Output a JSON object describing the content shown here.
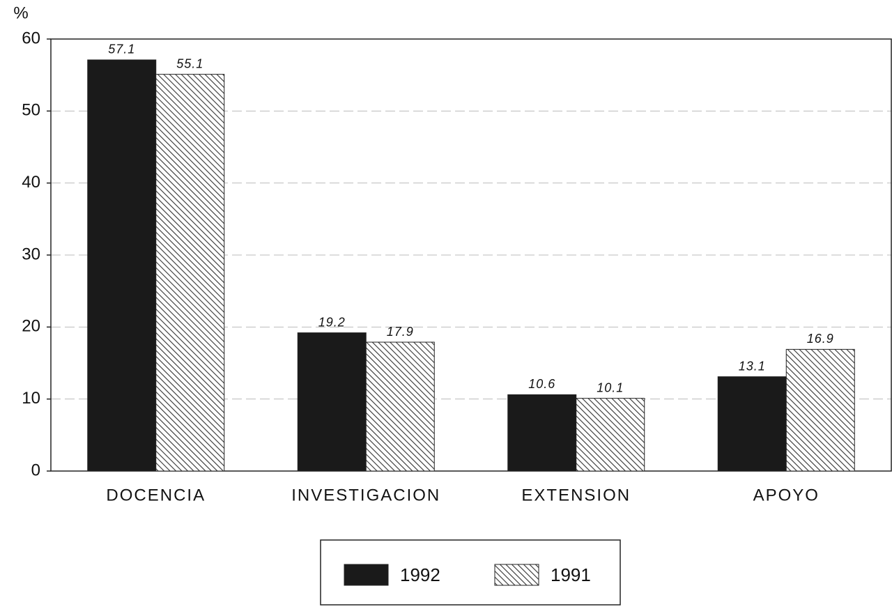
{
  "chart_data": {
    "type": "bar",
    "y_label": "%",
    "categories": [
      "DOCENCIA",
      "INVESTIGACION",
      "EXTENSION",
      "APOYO"
    ],
    "series": [
      {
        "name": "1992",
        "color": "#1a1a1a",
        "pattern": "solid",
        "values": [
          57.1,
          19.2,
          10.6,
          13.1
        ]
      },
      {
        "name": "1991",
        "color": "#333333",
        "pattern": "hatch",
        "values": [
          55.1,
          17.9,
          10.1,
          16.9
        ]
      }
    ],
    "ylim": [
      0,
      60
    ],
    "yticks": [
      0,
      10,
      20,
      30,
      40,
      50,
      60
    ],
    "grid": true,
    "legend": "bottom"
  }
}
